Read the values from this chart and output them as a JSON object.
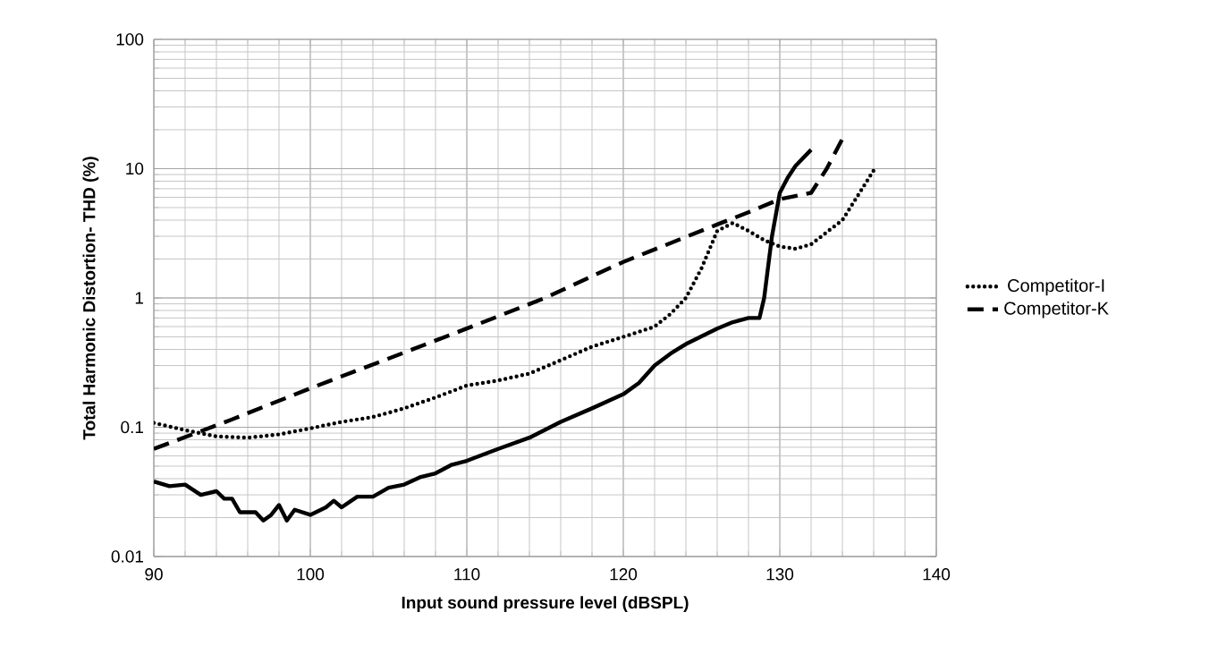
{
  "chart_data": {
    "type": "line",
    "xlabel": "Input sound pressure level (dBSPL)",
    "ylabel": "Total Harmonic Distortion- THD (%)",
    "log": "y",
    "grid": true,
    "legend": "right",
    "marker": "none",
    "xlim": [
      90,
      140
    ],
    "xticks": [
      90,
      100,
      110,
      120,
      130,
      140
    ],
    "ylim": [
      0.01,
      100
    ],
    "yticks": [
      0.01,
      0.1,
      1,
      10,
      100
    ],
    "series": [
      {
        "name": "Competitor-I",
        "color": "#000000",
        "line_style": "dotted",
        "x": [
          90,
          92,
          94,
          96,
          98,
          100,
          102,
          104,
          106,
          108,
          110,
          112,
          114,
          116,
          118,
          120,
          122,
          123,
          124,
          125,
          126,
          127,
          128,
          129,
          130,
          131,
          132,
          134,
          136
        ],
        "values": [
          0.108,
          0.095,
          0.085,
          0.083,
          0.088,
          0.098,
          0.11,
          0.12,
          0.14,
          0.17,
          0.21,
          0.23,
          0.26,
          0.33,
          0.42,
          0.5,
          0.6,
          0.75,
          1.0,
          1.7,
          3.3,
          3.8,
          3.3,
          2.8,
          2.5,
          2.4,
          2.6,
          4.0,
          9.7
        ]
      },
      {
        "name": "Competitor-K",
        "color": "#000000",
        "line_style": "dashed",
        "x": [
          90,
          95,
          100,
          105,
          110,
          115,
          120,
          126,
          128,
          130,
          132,
          133,
          134
        ],
        "values": [
          0.068,
          0.115,
          0.2,
          0.34,
          0.58,
          1.0,
          1.9,
          3.7,
          4.6,
          5.8,
          6.5,
          10,
          17
        ]
      },
      {
        "color": "#000000",
        "line_style": "solid",
        "x": [
          90,
          91,
          92,
          93,
          94,
          94.5,
          95,
          95.5,
          96.5,
          97,
          97.5,
          98,
          98.5,
          99,
          100,
          101,
          101.5,
          102,
          103,
          104,
          105,
          106,
          107,
          108,
          109,
          110,
          112,
          114,
          116,
          118,
          120,
          121,
          122,
          123,
          124,
          126,
          127,
          128,
          128.7,
          129,
          129.5,
          130,
          130.5,
          131,
          132
        ],
        "values": [
          0.038,
          0.035,
          0.036,
          0.03,
          0.032,
          0.028,
          0.028,
          0.022,
          0.022,
          0.019,
          0.021,
          0.025,
          0.019,
          0.023,
          0.021,
          0.024,
          0.027,
          0.024,
          0.029,
          0.029,
          0.034,
          0.036,
          0.041,
          0.044,
          0.051,
          0.055,
          0.068,
          0.083,
          0.11,
          0.14,
          0.18,
          0.22,
          0.3,
          0.37,
          0.44,
          0.58,
          0.65,
          0.7,
          0.7,
          1.0,
          3.0,
          6.5,
          8.5,
          10.5,
          14
        ]
      }
    ]
  }
}
